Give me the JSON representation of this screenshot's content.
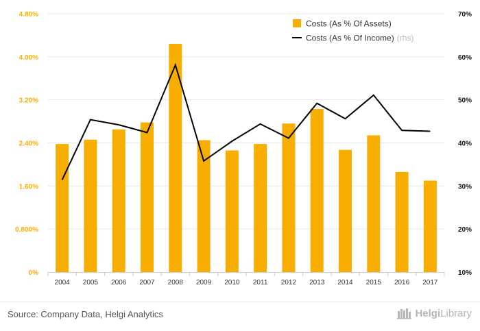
{
  "chart_data": {
    "type": "bar+line",
    "categories": [
      "2004",
      "2005",
      "2006",
      "2007",
      "2008",
      "2009",
      "2010",
      "2011",
      "2012",
      "2013",
      "2014",
      "2015",
      "2016",
      "2017"
    ],
    "series": [
      {
        "name": "Costs (As % Of Assets)",
        "type": "bar",
        "axis": "left",
        "color": "#F7AE00",
        "values": [
          2.38,
          2.46,
          2.65,
          2.78,
          4.24,
          2.45,
          2.26,
          2.38,
          2.76,
          3.03,
          2.27,
          2.54,
          1.86,
          1.7
        ]
      },
      {
        "name": "Costs (As % Of Income)",
        "name_suffix": "(rhs)",
        "type": "line",
        "axis": "right",
        "color": "#000000",
        "values": [
          31.4,
          45.4,
          44.2,
          42.4,
          58.1,
          35.8,
          40.4,
          44.4,
          41.1,
          49.2,
          45.6,
          51.1,
          42.9,
          42.7
        ]
      }
    ],
    "y_left": {
      "range": [
        0,
        4.8
      ],
      "ticks": [
        0,
        0.8,
        1.6,
        2.4,
        3.2,
        4.0,
        4.8
      ],
      "tick_labels": [
        "0%",
        "0.800%",
        "1.60%",
        "2.40%",
        "3.20%",
        "4.00%",
        "4.80%"
      ],
      "color": "#F7AE00"
    },
    "y_right": {
      "range": [
        10,
        70
      ],
      "ticks": [
        10,
        20,
        30,
        40,
        50,
        60,
        70
      ],
      "tick_labels": [
        "10%",
        "20%",
        "30%",
        "40%",
        "50%",
        "60%",
        "70%"
      ]
    },
    "grid": true,
    "legend_position": "top-right"
  },
  "footer": {
    "source": "Source: Company Data, Helgi Analytics",
    "logo_a": "Helgi",
    "logo_b": "Library"
  }
}
